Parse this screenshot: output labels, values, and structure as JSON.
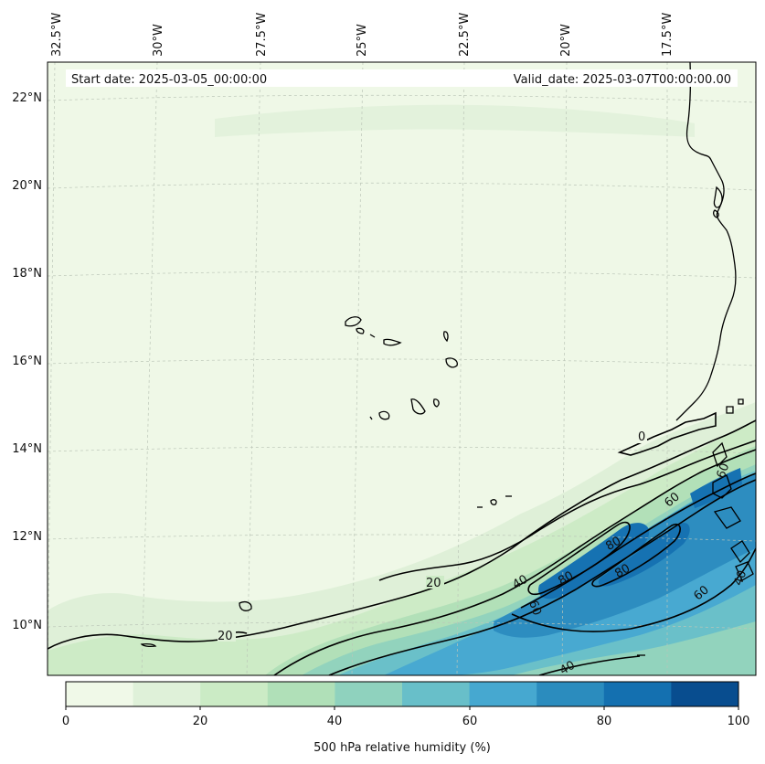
{
  "header": {
    "start_date": "Start date: 2025-03-05_00:00:00",
    "valid_date": "Valid_date: 2025-03-07T00:00:00.00"
  },
  "map": {
    "variable": "500 hPa relative humidity",
    "lon_labels": [
      "32.5°W",
      "30°W",
      "27.5°W",
      "25°W",
      "22.5°W",
      "20°W",
      "17.5°W"
    ],
    "lat_labels": [
      "22°N",
      "20°N",
      "18°N",
      "16°N",
      "14°N",
      "12°N",
      "10°N"
    ],
    "contour_labels": [
      "0",
      "20",
      "20",
      "40",
      "40",
      "60",
      "60",
      "60",
      "80",
      "80",
      "80",
      "60",
      "40"
    ],
    "colors": {
      "c0": "#f0f9e8",
      "c10": "#dff1d9",
      "c20": "#cbebc5",
      "c30": "#b0e0b8",
      "c40": "#8fd2be",
      "c50": "#68bfc9",
      "c60": "#46a8d0",
      "c70": "#2b8cbe",
      "c80": "#1470b0",
      "c90": "#084d8f"
    }
  },
  "colorbar": {
    "label": "500 hPa relative humidity (%)",
    "ticks": [
      "0",
      "20",
      "40",
      "60",
      "80",
      "100"
    ],
    "colors": [
      "#f0f9e8",
      "#dff1d9",
      "#cbebc5",
      "#b0e0b8",
      "#8fd2be",
      "#68bfc9",
      "#46a8d0",
      "#2b8cbe",
      "#1470b0",
      "#084d8f"
    ]
  }
}
